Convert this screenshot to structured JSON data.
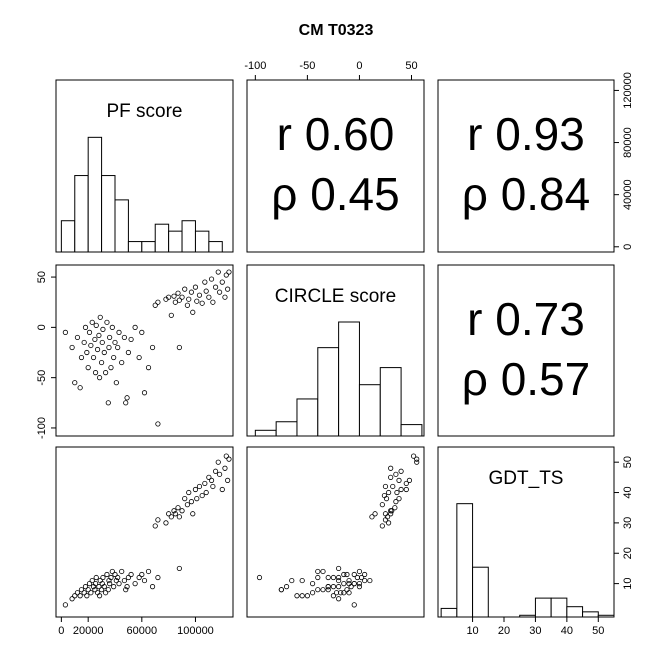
{
  "chart_data": {
    "type": "scatter_matrix",
    "title": "CM T0323",
    "variables": [
      {
        "name": "PF score",
        "lim": [
          -4000,
          128000
        ],
        "xticks": [
          0,
          20000,
          60000,
          100000
        ],
        "yticks": [
          0,
          40000,
          80000,
          120000
        ],
        "hist": {
          "bins": [
            0,
            10000,
            20000,
            30000,
            40000,
            50000,
            60000,
            70000,
            80000,
            90000,
            100000,
            110000,
            120000
          ],
          "counts": [
            9,
            22,
            33,
            22,
            15,
            3,
            3,
            8,
            6,
            9,
            6,
            3
          ]
        },
        "values": [
          3000,
          8000,
          10000,
          12000,
          14000,
          15000,
          17000,
          18000,
          19000,
          20000,
          21000,
          22000,
          23000,
          24000,
          25000,
          25500,
          26000,
          27000,
          28000,
          28500,
          29000,
          30000,
          30500,
          31000,
          32000,
          33000,
          34000,
          35000,
          35500,
          36000,
          37000,
          38000,
          39000,
          40000,
          41000,
          42000,
          43000,
          45000,
          47000,
          48000,
          49000,
          50000,
          52000,
          55000,
          58000,
          60000,
          62000,
          65000,
          68000,
          72000,
          88000,
          70000,
          72000,
          78000,
          80000,
          82000,
          84000,
          85000,
          87000,
          88000,
          90000,
          92000,
          94000,
          95000,
          97000,
          98000,
          100000,
          101000,
          103000,
          105000,
          107000,
          108000,
          110000,
          112000,
          113000,
          115000,
          117000,
          118000,
          120000,
          122000,
          123000,
          124000,
          125000
        ]
      },
      {
        "name": "CIRCLE score",
        "lim": [
          -108,
          62
        ],
        "xticks": [
          -100,
          -50,
          0,
          50
        ],
        "yticks": [
          -100,
          -50,
          0,
          50
        ],
        "hist": {
          "bins": [
            -100,
            -80,
            -60,
            -40,
            -20,
            0,
            20,
            40,
            60
          ],
          "counts": [
            2,
            5,
            13,
            31,
            40,
            18,
            24,
            4
          ]
        },
        "values": [
          -5,
          -20,
          -55,
          -10,
          -60,
          -30,
          -15,
          0,
          -25,
          -40,
          -5,
          -18,
          5,
          -30,
          -12,
          -45,
          2,
          -22,
          -8,
          -50,
          10,
          -35,
          -15,
          -2,
          -25,
          -45,
          5,
          -75,
          -20,
          -10,
          -40,
          0,
          -30,
          -15,
          -55,
          -20,
          -5,
          -35,
          -10,
          -75,
          -70,
          -25,
          -12,
          0,
          -30,
          -5,
          -65,
          -40,
          -20,
          -96,
          -20,
          22,
          25,
          28,
          30,
          12,
          31,
          25,
          34,
          27,
          30,
          38,
          22,
          28,
          35,
          15,
          40,
          26,
          32,
          24,
          45,
          36,
          30,
          48,
          25,
          40,
          55,
          35,
          45,
          30,
          52,
          38,
          55
        ]
      },
      {
        "name": "GDT_TS",
        "lim": [
          -1,
          55
        ],
        "xticks": [
          10,
          20,
          30,
          40,
          50
        ],
        "yticks": [
          10,
          20,
          30,
          40,
          50
        ],
        "hist": {
          "bins": [
            0,
            5,
            10,
            15,
            20,
            25,
            30,
            35,
            40,
            45,
            50,
            55
          ],
          "counts": [
            5,
            66,
            29,
            0,
            0,
            1,
            11,
            11,
            6,
            3,
            1
          ]
        },
        "values": [
          3,
          5,
          6,
          7,
          6,
          8,
          7,
          9,
          6,
          8,
          10,
          7,
          11,
          9,
          8,
          10,
          12,
          7,
          9,
          6,
          11,
          8,
          10,
          12,
          9,
          7,
          13,
          8,
          11,
          10,
          12,
          14,
          9,
          13,
          11,
          12,
          10,
          14,
          11,
          8,
          9,
          12,
          13,
          10,
          12,
          13,
          11,
          14,
          9,
          12,
          15,
          29,
          31,
          30,
          33,
          32,
          34,
          33,
          35,
          32,
          34,
          38,
          36,
          40,
          37,
          33,
          41,
          38,
          42,
          39,
          43,
          40,
          45,
          44,
          42,
          47,
          50,
          46,
          41,
          48,
          52,
          44,
          51
        ]
      }
    ],
    "correlations": [
      {
        "r": "r 0.60",
        "rho": "ρ 0.45"
      },
      {
        "r": "r 0.93",
        "rho": "ρ 0.84"
      },
      {
        "r": "r 0.73",
        "rho": "ρ 0.57"
      }
    ]
  }
}
